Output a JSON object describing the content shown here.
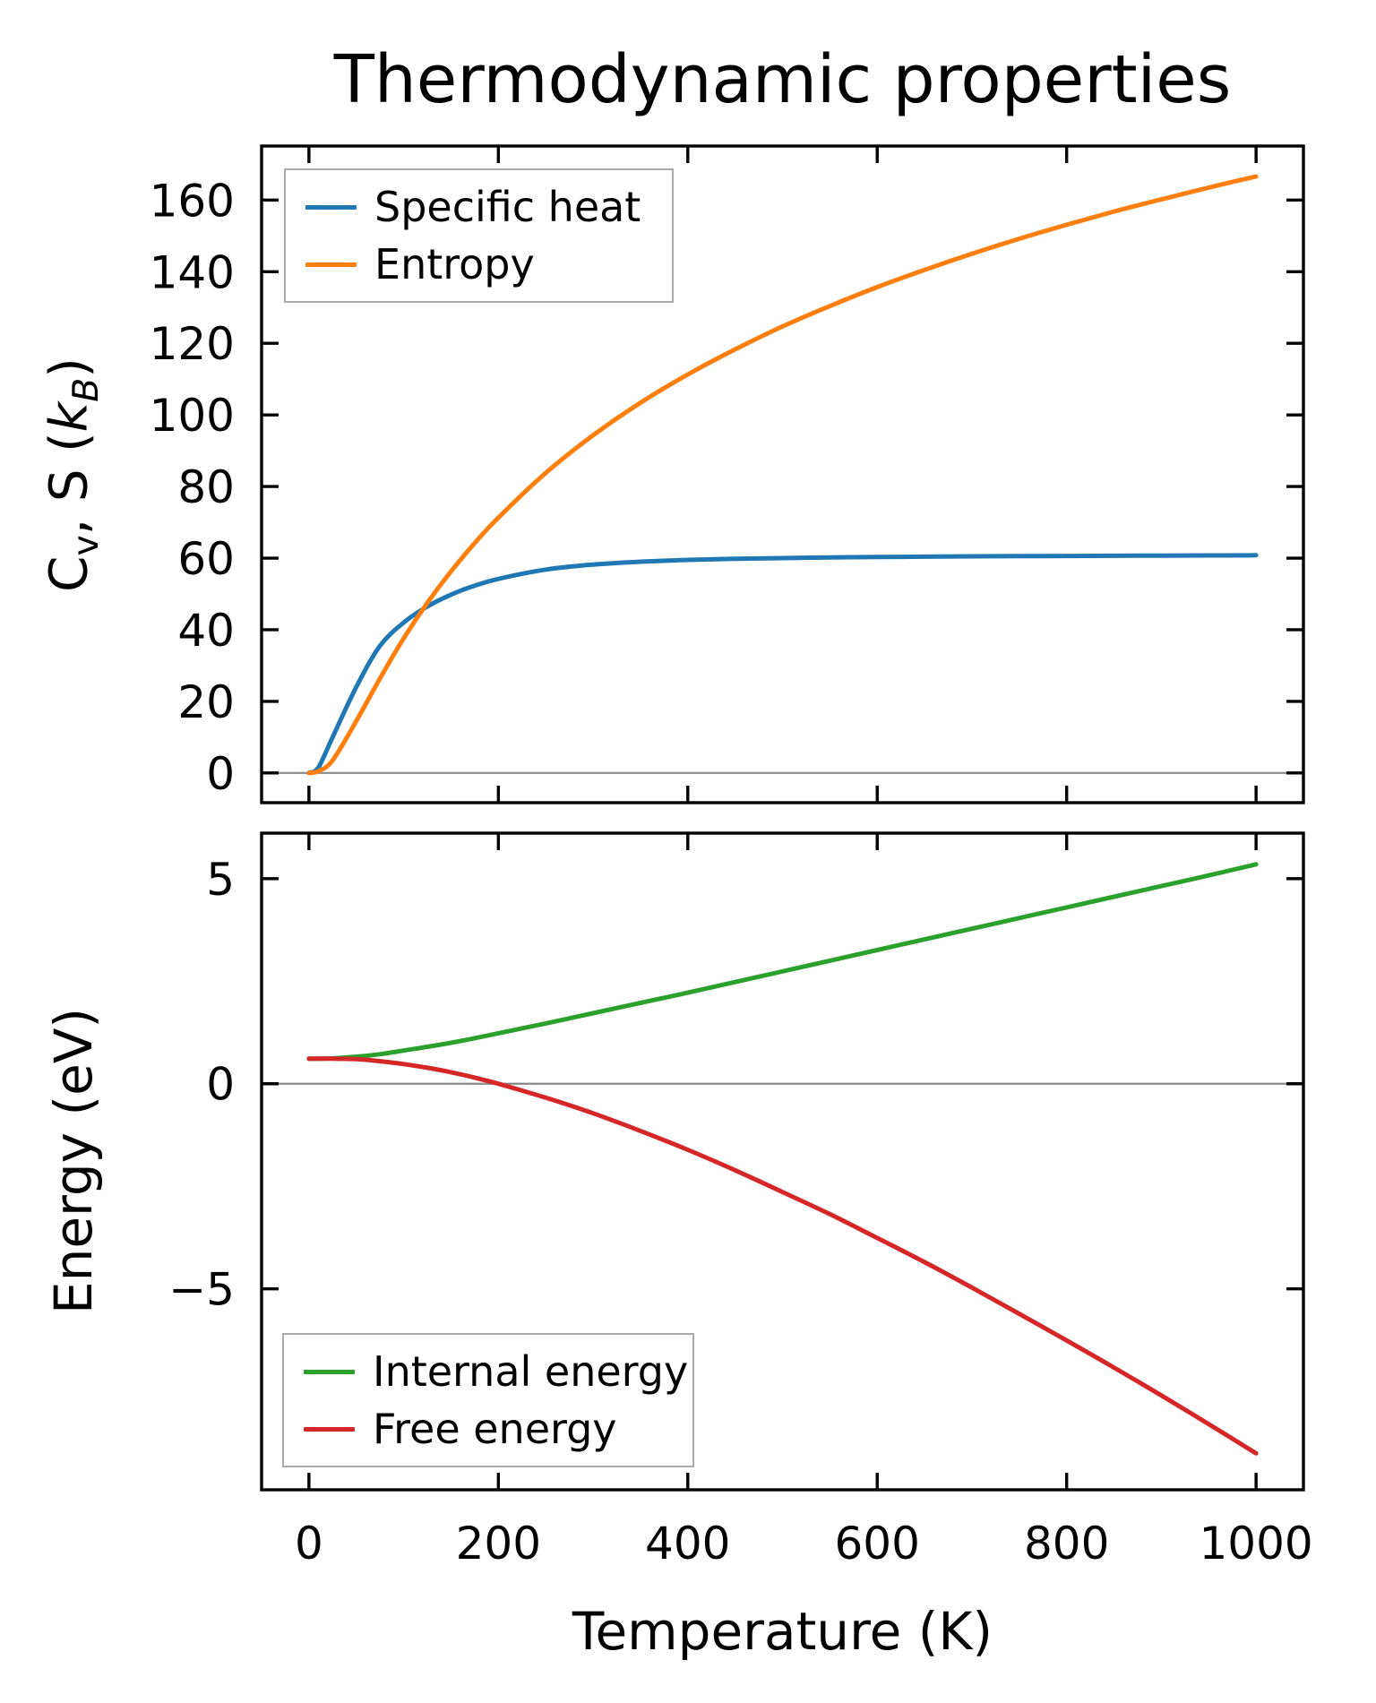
{
  "title": "Thermodynamic properties",
  "xlabel": "Temperature (K)",
  "top_plot": {
    "ylabel": "Cv, S (kB)",
    "ylabel_parts": {
      "c": "C",
      "v": "v",
      "mid": ", S (",
      "k": "k",
      "b": "B",
      "close": ")"
    }
  },
  "bottom_plot": {
    "ylabel": "Energy (eV)"
  },
  "colors": {
    "specific_heat": "#1f77b4",
    "entropy": "#ff7f0e",
    "internal_energy": "#2ca02c",
    "free_energy": "#d62728",
    "zero_line": "#898989",
    "spine": "#000000",
    "legend_edge": "#aaaaaa",
    "background": "#ffffff"
  },
  "chart_data": [
    {
      "type": "line",
      "subplot": "top",
      "title": "Thermodynamic properties",
      "xlabel": "",
      "ylabel": "Cv, S (kB)",
      "xlim": [
        -50,
        1050
      ],
      "ylim": [
        -8.3,
        175.1
      ],
      "xticks": [
        0,
        200,
        400,
        600,
        800,
        1000
      ],
      "xticklabels_visible": false,
      "yticks": [
        0,
        20,
        40,
        60,
        80,
        100,
        120,
        140,
        160
      ],
      "zero_line": 0,
      "grid": false,
      "legend_position": "upper left",
      "x": [
        0,
        10,
        25,
        50,
        75,
        100,
        125,
        150,
        175,
        200,
        250,
        300,
        350,
        400,
        450,
        500,
        550,
        600,
        650,
        700,
        750,
        800,
        850,
        900,
        950,
        1000
      ],
      "series": [
        {
          "name": "Specific heat",
          "color": "#1f77b4",
          "values": [
            0,
            1.5,
            10,
            24,
            35.5,
            42,
            46.5,
            49.8,
            52.3,
            54.2,
            56.8,
            58.2,
            59,
            59.5,
            59.8,
            60,
            60.2,
            60.3,
            60.4,
            60.5,
            60.55,
            60.6,
            60.65,
            60.7,
            60.75,
            60.8
          ]
        },
        {
          "name": "Entropy",
          "color": "#ff7f0e",
          "values": [
            0,
            0.5,
            3.5,
            14.5,
            26.4,
            37.6,
            47.5,
            56.3,
            64.2,
            71.3,
            83.8,
            94.3,
            103.4,
            111.3,
            118.3,
            124.7,
            130.4,
            135.7,
            140.5,
            145,
            149.2,
            153.1,
            156.8,
            160.2,
            163.5,
            166.6
          ]
        }
      ]
    },
    {
      "type": "line",
      "subplot": "bottom",
      "title": "",
      "xlabel": "Temperature (K)",
      "ylabel": "Energy (eV)",
      "xlim": [
        -50,
        1050
      ],
      "ylim": [
        -9.9,
        6.11
      ],
      "xticks": [
        0,
        200,
        400,
        600,
        800,
        1000
      ],
      "xticklabels_visible": true,
      "yticks": [
        -5,
        0,
        5
      ],
      "zero_line": 0,
      "grid": false,
      "legend_position": "lower left",
      "x": [
        0,
        10,
        25,
        50,
        75,
        100,
        125,
        150,
        175,
        200,
        250,
        300,
        350,
        400,
        450,
        500,
        550,
        600,
        650,
        700,
        750,
        800,
        850,
        900,
        950,
        1000
      ],
      "series": [
        {
          "name": "Internal energy",
          "color": "#2ca02c",
          "values": [
            0.61,
            0.61,
            0.62,
            0.66,
            0.72,
            0.81,
            0.9,
            1,
            1.11,
            1.23,
            1.47,
            1.72,
            1.97,
            2.22,
            2.48,
            2.74,
            3,
            3.26,
            3.52,
            3.78,
            4.04,
            4.3,
            4.56,
            4.82,
            5.08,
            5.35
          ]
        },
        {
          "name": "Free energy",
          "color": "#d62728",
          "values": [
            0.61,
            0.61,
            0.61,
            0.6,
            0.55,
            0.48,
            0.39,
            0.28,
            0.15,
            0,
            -0.34,
            -0.72,
            -1.15,
            -1.61,
            -2.11,
            -2.64,
            -3.18,
            -3.76,
            -4.35,
            -4.97,
            -5.61,
            -6.26,
            -6.92,
            -7.6,
            -8.3,
            -9.01
          ]
        }
      ]
    }
  ]
}
